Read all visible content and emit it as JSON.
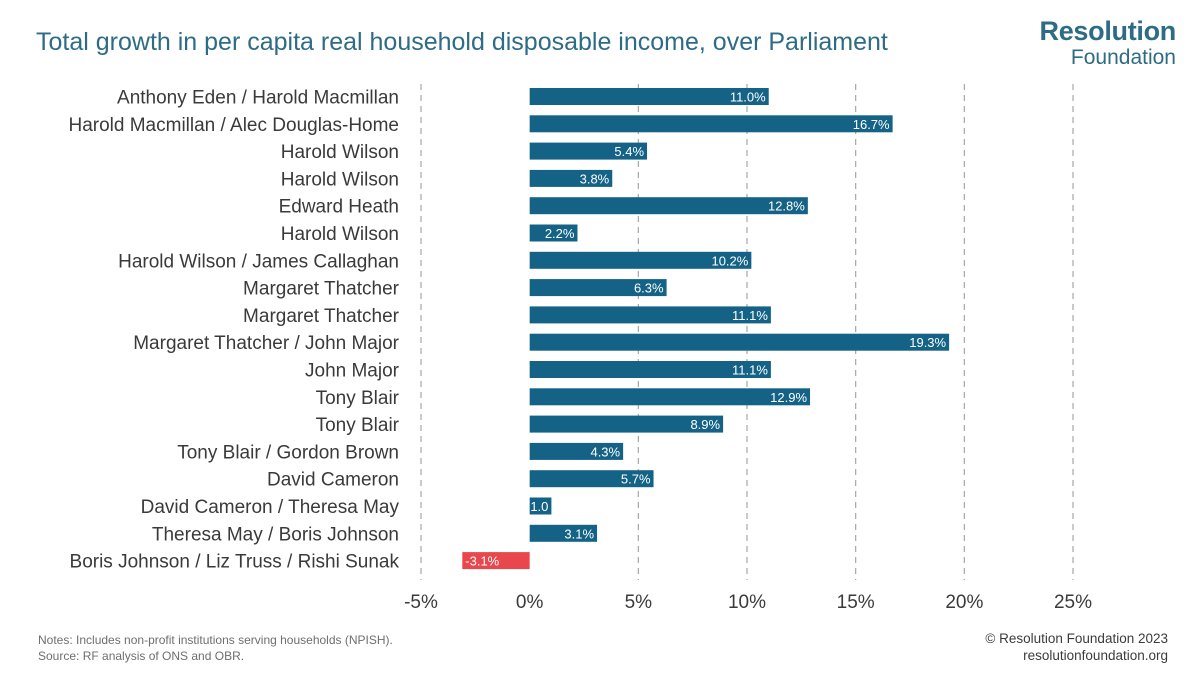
{
  "header": {
    "title": "Total growth in per capita real household disposable income, over Parliament",
    "logo_line1": "Resolution",
    "logo_line2": "Foundation"
  },
  "footer": {
    "notes": "Notes: Includes non-profit institutions serving households (NPISH).",
    "source": "Source: RF analysis of ONS and OBR.",
    "copyright": "© Resolution Foundation 2023",
    "website": "resolutionfoundation.org"
  },
  "colors": {
    "positive_bar": "#146387",
    "negative_bar": "#e8474d",
    "title": "#2e6c86",
    "grid": "#a6a6a6"
  },
  "chart_data": {
    "type": "bar",
    "orientation": "horizontal",
    "title": "Total growth in per capita real household disposable income, over Parliament",
    "categories": [
      "Anthony Eden / Harold Macmillan",
      "Harold Macmillan / Alec Douglas-Home",
      "Harold Wilson",
      "Harold Wilson",
      "Edward Heath",
      "Harold Wilson",
      "Harold Wilson / James Callaghan",
      "Margaret Thatcher",
      "Margaret Thatcher",
      "Margaret Thatcher / John Major",
      "John Major",
      "Tony Blair",
      "Tony Blair",
      "Tony Blair / Gordon Brown",
      "David Cameron",
      "David Cameron / Theresa May",
      "Theresa May / Boris Johnson",
      "Boris Johnson / Liz Truss / Rishi Sunak"
    ],
    "values": [
      11.0,
      16.7,
      5.4,
      3.8,
      12.8,
      2.2,
      10.2,
      6.3,
      11.1,
      19.3,
      11.1,
      12.9,
      8.9,
      4.3,
      5.7,
      1.0,
      3.1,
      -3.1
    ],
    "data_labels": [
      "11.0%",
      "16.7%",
      "5.4%",
      "3.8%",
      "12.8%",
      "2.2%",
      "10.2%",
      "6.3%",
      "11.1%",
      "19.3%",
      "11.1%",
      "12.9%",
      "8.9%",
      "4.3%",
      "5.7%",
      "1.0",
      "3.1%",
      "-3.1%"
    ],
    "xlim": [
      -5,
      25
    ],
    "xticks": [
      -5,
      0,
      5,
      10,
      15,
      20,
      25
    ],
    "xtick_labels": [
      "-5%",
      "0%",
      "5%",
      "10%",
      "15%",
      "20%",
      "25%"
    ],
    "grid": "vertical dashed",
    "legend": "none"
  }
}
